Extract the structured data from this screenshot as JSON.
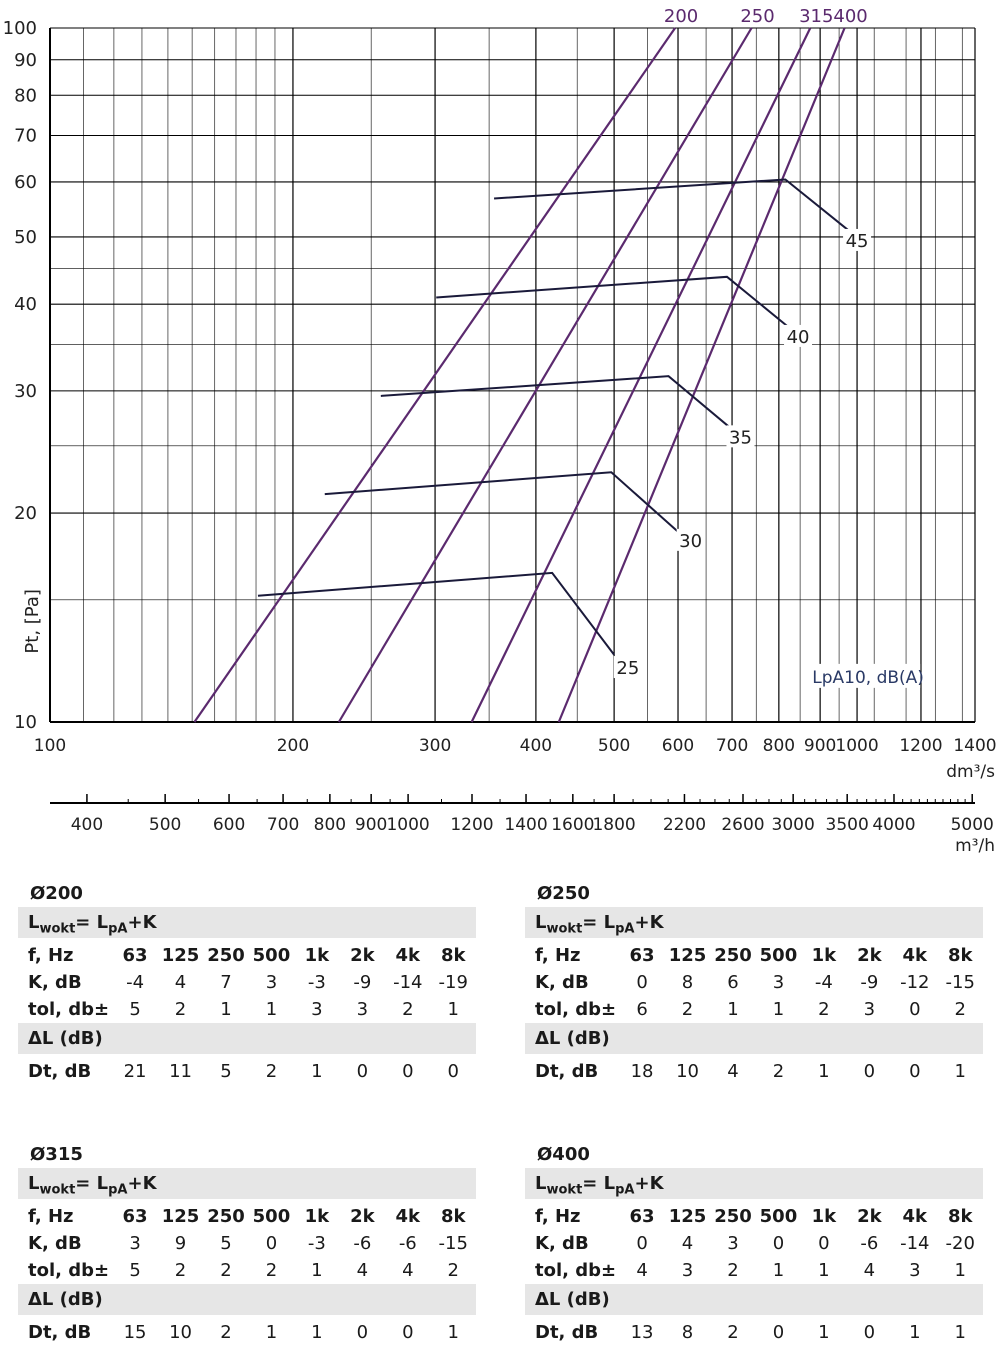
{
  "chart_data": {
    "type": "line",
    "scale": "log-log",
    "xlabel": "dm³/s",
    "x2label": "m³/h",
    "ylabel": "Pt, [Pa]",
    "xlim": [
      100,
      1400
    ],
    "ylim": [
      10,
      100
    ],
    "x_ticks": [
      100,
      200,
      300,
      400,
      500,
      600,
      700,
      800,
      900,
      1000,
      1200,
      1400
    ],
    "x_tick_labels": [
      "100",
      "200",
      "300",
      "400",
      "500",
      "600",
      "700",
      "800",
      "900",
      "1000",
      "1200",
      "1400"
    ],
    "y_ticks": [
      10,
      20,
      30,
      40,
      50,
      60,
      70,
      80,
      90,
      100
    ],
    "y_tick_labels": [
      "10",
      "20",
      "30",
      "40",
      "50",
      "60",
      "70",
      "80",
      "90",
      "100"
    ],
    "x2_ticks": [
      400,
      500,
      600,
      700,
      800,
      900,
      1000,
      1200,
      1400,
      1600,
      1800,
      2200,
      2600,
      3000,
      3500,
      4000,
      5000
    ],
    "x2_tick_labels": [
      "400",
      "500",
      "600",
      "700",
      "800",
      "900",
      "1000",
      "1200",
      "1400",
      "1600",
      "1800",
      "2200",
      "2600",
      "3000",
      "3500",
      "4000",
      "5000"
    ],
    "noise_label": "LpA10, dB(A)",
    "series": [
      {
        "name": "200",
        "points": [
          [
            151,
            10
          ],
          [
            595,
            100
          ]
        ]
      },
      {
        "name": "250",
        "points": [
          [
            228,
            10
          ],
          [
            740,
            100
          ]
        ]
      },
      {
        "name": "315",
        "points": [
          [
            333,
            10
          ],
          [
            875,
            100
          ]
        ]
      },
      {
        "name": "400",
        "points": [
          [
            427,
            10
          ],
          [
            965,
            100
          ]
        ]
      }
    ],
    "noise_lines": [
      {
        "name": "25",
        "points": [
          [
            181,
            15.2
          ],
          [
            419,
            16.4
          ],
          [
            500,
            12.5
          ]
        ],
        "label_at": [
          520,
          12
        ]
      },
      {
        "name": "30",
        "points": [
          [
            219,
            21.3
          ],
          [
            496,
            22.9
          ],
          [
            600,
            18.8
          ]
        ],
        "label_at": [
          622,
          18.3
        ]
      },
      {
        "name": "35",
        "points": [
          [
            257,
            29.5
          ],
          [
            584,
            31.5
          ],
          [
            703,
            26.3
          ]
        ],
        "label_at": [
          717,
          25.8
        ]
      },
      {
        "name": "40",
        "points": [
          [
            301,
            40.9
          ],
          [
            690,
            43.8
          ],
          [
            831,
            36.7
          ]
        ],
        "label_at": [
          845,
          36
        ]
      },
      {
        "name": "45",
        "points": [
          [
            355,
            56.8
          ],
          [
            815,
            60.5
          ],
          [
            980,
            50.9
          ]
        ],
        "label_at": [
          1000,
          49.5
        ]
      }
    ],
    "colors": {
      "ducts": "#5b2a6e",
      "noise": "#1a1a3a",
      "grid": "#000000"
    }
  },
  "tables": [
    {
      "diameter": "Ø200",
      "formula_L": "L",
      "formula_L_sub": "wokt",
      "formula_mid": "= L",
      "formula_pa_sub": "pA",
      "formula_end": "+K",
      "f_label": "f, Hz",
      "freqs": [
        "63",
        "125",
        "250",
        "500",
        "1k",
        "2k",
        "4k",
        "8k"
      ],
      "k_label": "K, dB",
      "k": [
        "-4",
        "4",
        "7",
        "3",
        "-3",
        "-9",
        "-14",
        "-19"
      ],
      "tol_label": "tol, db±",
      "tol": [
        "5",
        "2",
        "1",
        "1",
        "3",
        "3",
        "2",
        "1"
      ],
      "dl_label": "ΔL (dB)",
      "dt_label": "Dt, dB",
      "dt": [
        "21",
        "11",
        "5",
        "2",
        "1",
        "0",
        "0",
        "0"
      ]
    },
    {
      "diameter": "Ø250",
      "formula_L": "L",
      "formula_L_sub": "wokt",
      "formula_mid": "= L",
      "formula_pa_sub": "pA",
      "formula_end": "+K",
      "f_label": "f, Hz",
      "freqs": [
        "63",
        "125",
        "250",
        "500",
        "1k",
        "2k",
        "4k",
        "8k"
      ],
      "k_label": "K, dB",
      "k": [
        "0",
        "8",
        "6",
        "3",
        "-4",
        "-9",
        "-12",
        "-15"
      ],
      "tol_label": "tol, db±",
      "tol": [
        "6",
        "2",
        "1",
        "1",
        "2",
        "3",
        "0",
        "2"
      ],
      "dl_label": "ΔL (dB)",
      "dt_label": "Dt, dB",
      "dt": [
        "18",
        "10",
        "4",
        "2",
        "1",
        "0",
        "0",
        "1"
      ]
    },
    {
      "diameter": "Ø315",
      "formula_L": "L",
      "formula_L_sub": "wokt",
      "formula_mid": "= L",
      "formula_pa_sub": "pA",
      "formula_end": "+K",
      "f_label": "f, Hz",
      "freqs": [
        "63",
        "125",
        "250",
        "500",
        "1k",
        "2k",
        "4k",
        "8k"
      ],
      "k_label": "K, dB",
      "k": [
        "3",
        "9",
        "5",
        "0",
        "-3",
        "-6",
        "-6",
        "-15"
      ],
      "tol_label": "tol, db±",
      "tol": [
        "5",
        "2",
        "2",
        "2",
        "1",
        "4",
        "4",
        "2"
      ],
      "dl_label": "ΔL (dB)",
      "dt_label": "Dt, dB",
      "dt": [
        "15",
        "10",
        "2",
        "1",
        "1",
        "0",
        "0",
        "1"
      ]
    },
    {
      "diameter": "Ø400",
      "formula_L": "L",
      "formula_L_sub": "wokt",
      "formula_mid": "= L",
      "formula_pa_sub": "pA",
      "formula_end": "+K",
      "f_label": "f, Hz",
      "freqs": [
        "63",
        "125",
        "250",
        "500",
        "1k",
        "2k",
        "4k",
        "8k"
      ],
      "k_label": "K, dB",
      "k": [
        "0",
        "4",
        "3",
        "0",
        "0",
        "-6",
        "-14",
        "-20"
      ],
      "tol_label": "tol, db±",
      "tol": [
        "4",
        "3",
        "2",
        "1",
        "1",
        "4",
        "3",
        "1"
      ],
      "dl_label": "ΔL (dB)",
      "dt_label": "Dt, dB",
      "dt": [
        "13",
        "8",
        "2",
        "0",
        "1",
        "0",
        "1",
        "1"
      ]
    }
  ]
}
